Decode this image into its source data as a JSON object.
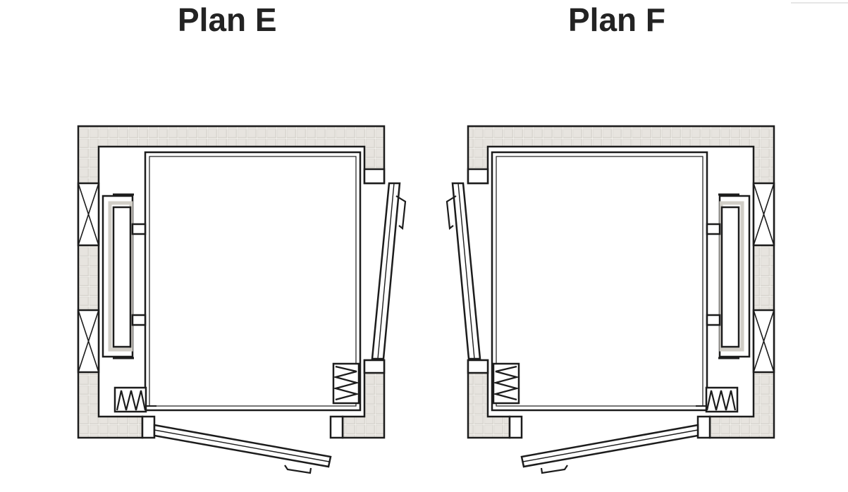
{
  "plans": [
    {
      "id": "e",
      "title": "Plan E"
    },
    {
      "id": "f",
      "title": "Plan F"
    }
  ],
  "colors": {
    "line": "#1c1c1c",
    "wall_fill": "#d9d6d0",
    "wall_grid": "#f4f2ee",
    "shadow": "#d6d3cd",
    "background": "#ffffff"
  }
}
